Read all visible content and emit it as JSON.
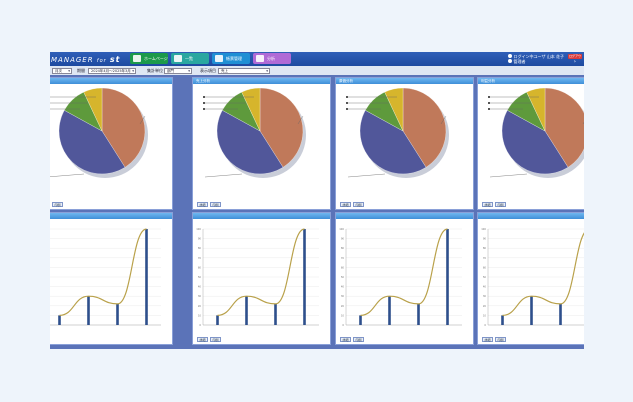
{
  "app": {
    "logo_prefix": "MANAGER",
    "logo_for": "for",
    "logo_brand": "st",
    "nav_buttons": [
      {
        "label": "ホームページ",
        "color": "#1c9a4a"
      },
      {
        "label": "一覧",
        "color": "#2aa7a0"
      },
      {
        "label": "帳票管理",
        "color": "#1f8fd4"
      },
      {
        "label": "分析",
        "color": "#b06ad6"
      }
    ],
    "user_line1": "ログイン中ユーザ 山本 花子",
    "user_line2": "管理者",
    "logout_label": "ログアウト"
  },
  "filters": [
    {
      "label": "",
      "value": "月次"
    },
    {
      "label": "期間",
      "value": "2024年4月〜2025年3月"
    },
    {
      "label": "集計単位",
      "value": "部門"
    },
    {
      "label": "表示項目",
      "value": "売上"
    }
  ],
  "panels": [
    {
      "title": "",
      "buttons": [
        "詳細",
        "印刷"
      ]
    },
    {
      "title": "売上分析",
      "buttons": [
        "詳細",
        "印刷"
      ]
    },
    {
      "title": "原価分析",
      "buttons": [
        "詳細",
        "印刷"
      ]
    },
    {
      "title": "利益分析",
      "buttons": [
        "詳細",
        "印刷"
      ]
    },
    {
      "title": "",
      "buttons": [
        "詳細"
      ]
    },
    {
      "title": "",
      "buttons": [
        "詳細",
        "印刷"
      ]
    },
    {
      "title": "",
      "buttons": [
        "詳細",
        "印刷"
      ]
    },
    {
      "title": "",
      "buttons": [
        "詳細",
        "印刷"
      ]
    }
  ],
  "chart_data": [
    {
      "type": "pie",
      "slices": [
        {
          "value": 41,
          "color": "#c0795a"
        },
        {
          "value": 42,
          "color": "#51579a"
        },
        {
          "value": 10,
          "color": "#5e9a3c"
        },
        {
          "value": 7,
          "color": "#d6b52c"
        }
      ],
      "legend_position": "left",
      "grid": false
    },
    {
      "type": "bar",
      "categories": [
        "",
        "",
        "",
        ""
      ],
      "values": [
        10,
        30,
        22,
        100
      ],
      "trend_line": [
        10,
        30,
        22,
        100
      ],
      "bar_color": "#2e4f8c",
      "line_color": "#b9a14a",
      "ylim": [
        0,
        100
      ],
      "grid": true
    }
  ]
}
